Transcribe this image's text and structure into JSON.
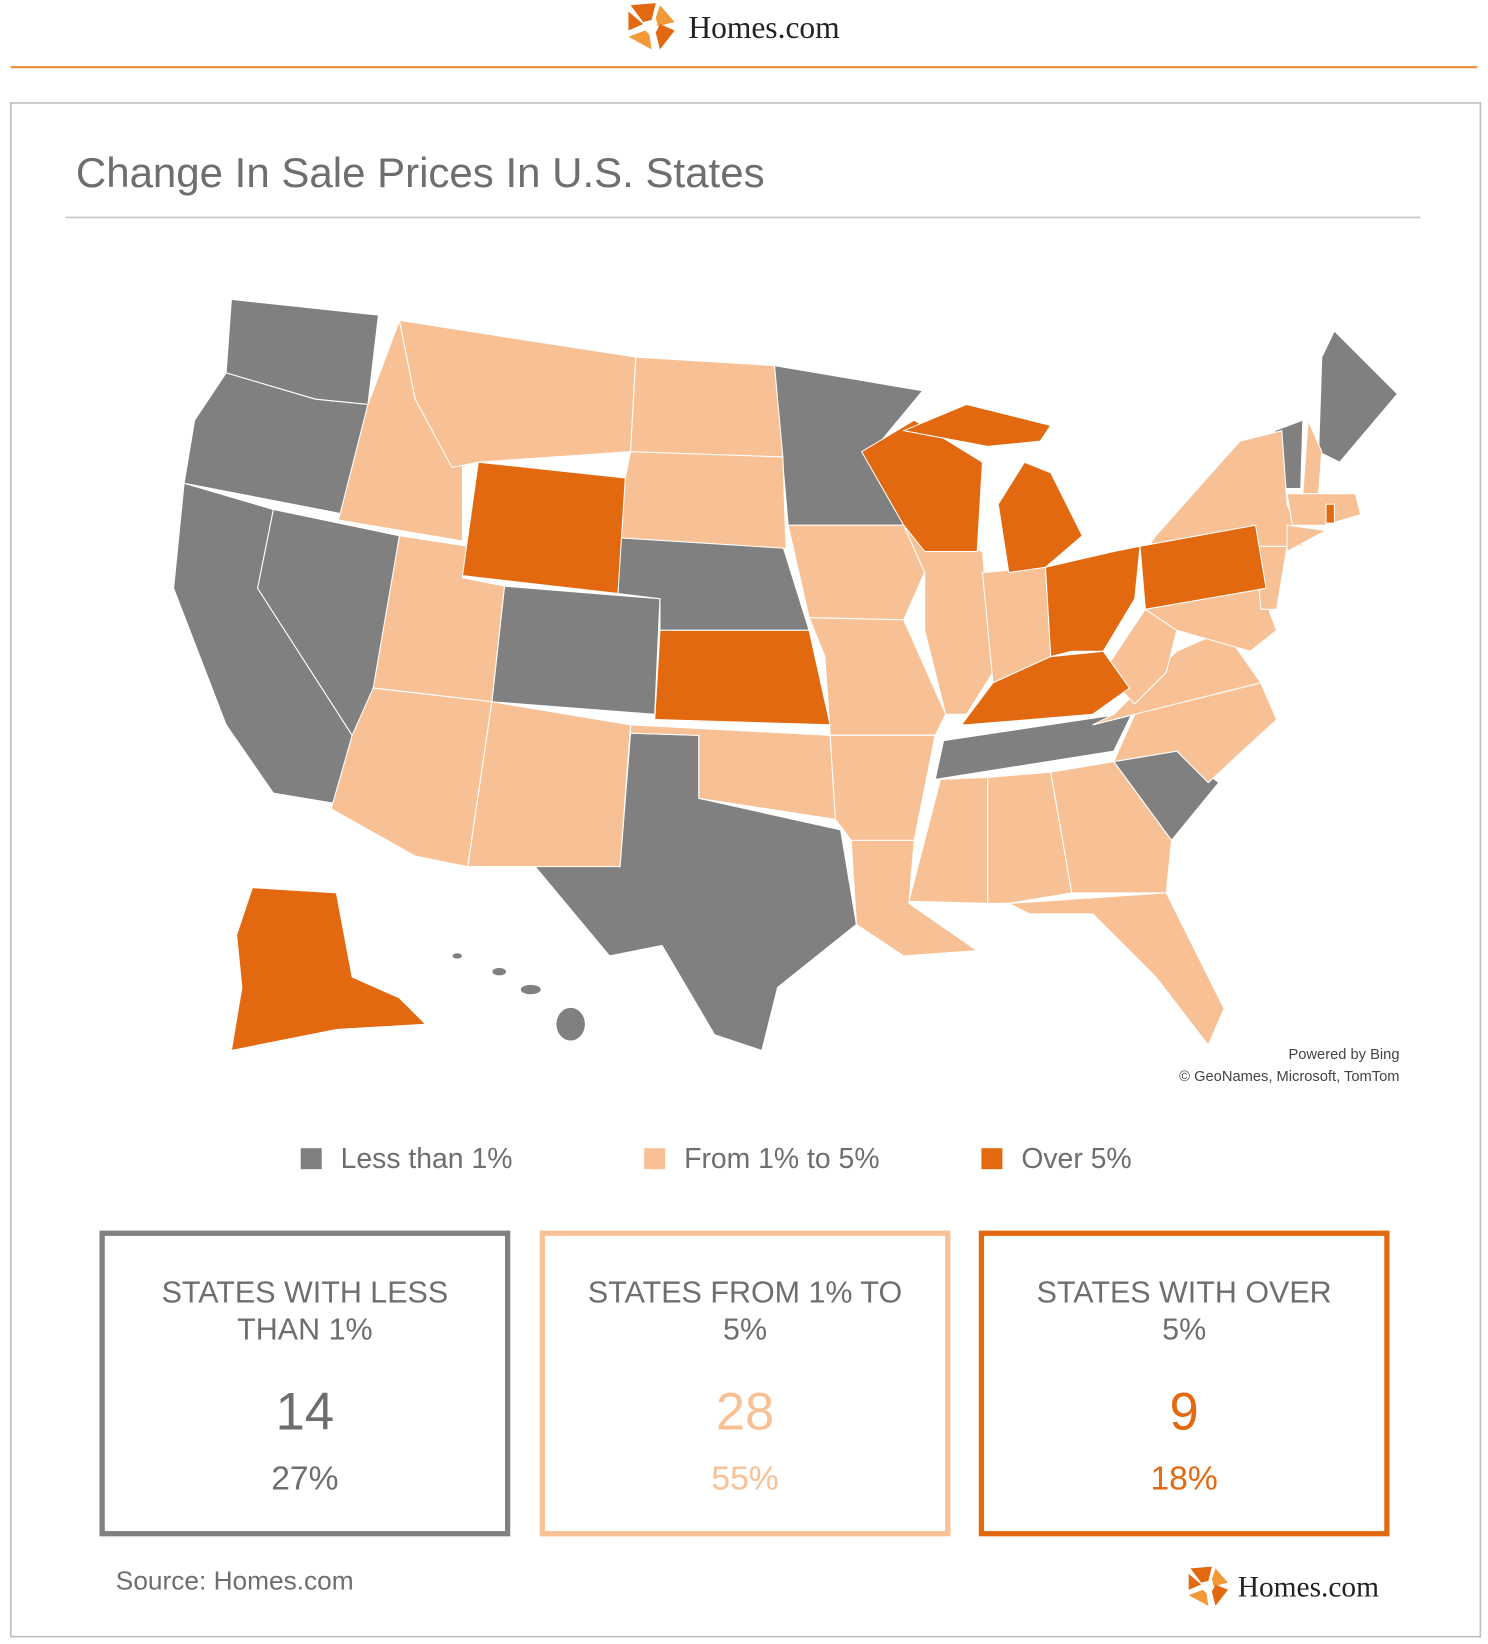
{
  "header": {
    "logo_text": "Homes.com"
  },
  "title": "Change In Sale Prices In U.S. States",
  "map": {
    "attribution": [
      "Powered by Bing",
      "© GeoNames, Microsoft, TomTom"
    ]
  },
  "legend": [
    {
      "label": "Less than 1%",
      "color": "#808080"
    },
    {
      "label": "From 1% to 5%",
      "color": "#f8c195"
    },
    {
      "label": "Over 5%",
      "color": "#e2690f"
    }
  ],
  "cards": [
    {
      "title": "STATES WITH LESS THAN 1%",
      "count": 14,
      "share": "27%"
    },
    {
      "title": "STATES FROM 1% TO 5%",
      "count": 28,
      "share": "55%"
    },
    {
      "title": "STATES WITH OVER 5%",
      "count": 9,
      "share": "18%"
    }
  ],
  "footer": {
    "source": "Source: Homes.com",
    "logo_text": "Homes.com"
  }
}
